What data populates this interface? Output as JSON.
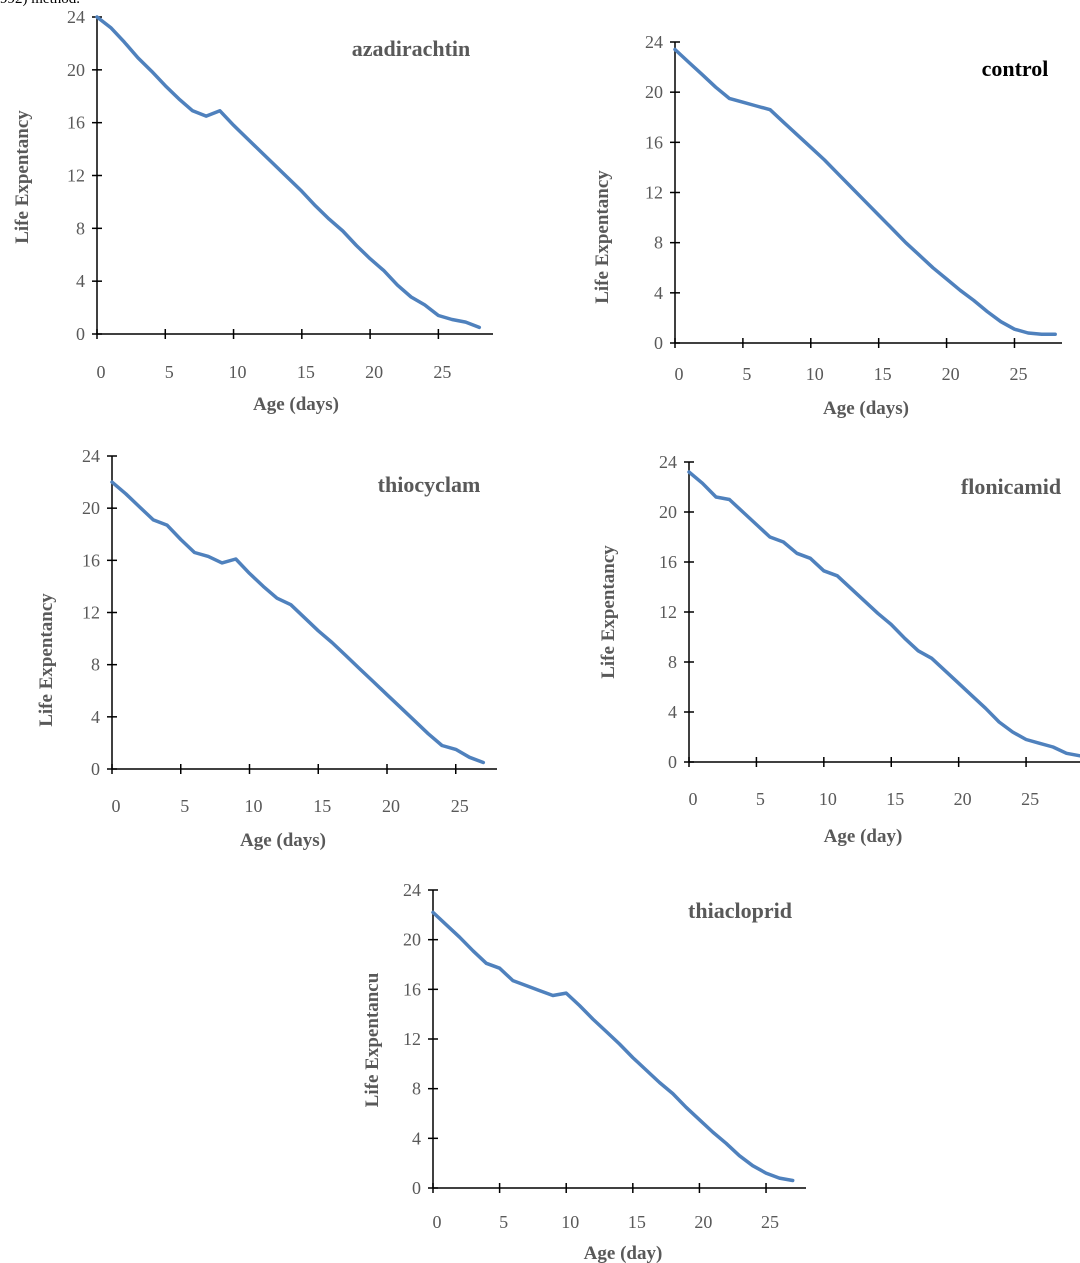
{
  "caption_fragment": "992) method.",
  "colors": {
    "line": "#4f81bd",
    "axis": "#000000",
    "text": "#595959",
    "title_control": "#000000"
  },
  "chart_data": [
    {
      "type": "line",
      "title": "azadirachtin",
      "xlabel": "Age (days)",
      "ylabel": "Life Expentancy",
      "xlim": [
        0,
        29
      ],
      "ylim": [
        0,
        24
      ],
      "xticks": [
        0,
        5,
        10,
        15,
        20,
        25
      ],
      "yticks": [
        0,
        4,
        8,
        12,
        16,
        20,
        24
      ],
      "grid": false,
      "x": [
        0,
        1,
        2,
        3,
        4,
        5,
        6,
        7,
        8,
        9,
        10,
        11,
        12,
        13,
        14,
        15,
        16,
        17,
        18,
        19,
        20,
        21,
        22,
        23,
        24,
        25,
        26,
        27,
        28
      ],
      "values": [
        24,
        23.2,
        22.1,
        20.9,
        19.9,
        18.8,
        17.8,
        16.9,
        16.5,
        16.9,
        15.8,
        14.8,
        13.8,
        12.8,
        11.8,
        10.8,
        9.7,
        8.7,
        7.8,
        6.7,
        5.7,
        4.8,
        3.7,
        2.8,
        2.2,
        1.4,
        1.1,
        0.9,
        0.5
      ]
    },
    {
      "type": "line",
      "title": "control",
      "xlabel": "Age (days)",
      "ylabel": "Life Expentancy",
      "xlim": [
        0,
        28.5
      ],
      "ylim": [
        0,
        24
      ],
      "xticks": [
        0,
        5,
        10,
        15,
        20,
        25
      ],
      "yticks": [
        0,
        4,
        8,
        12,
        16,
        20,
        24
      ],
      "grid": false,
      "x": [
        0,
        1,
        2,
        3,
        4,
        5,
        6,
        7,
        8,
        9,
        10,
        11,
        12,
        13,
        14,
        15,
        16,
        17,
        18,
        19,
        20,
        21,
        22,
        23,
        24,
        25,
        26,
        27,
        28
      ],
      "values": [
        23.4,
        22.4,
        21.4,
        20.4,
        19.5,
        19.2,
        18.9,
        18.6,
        17.6,
        16.6,
        15.6,
        14.6,
        13.5,
        12.4,
        11.3,
        10.2,
        9.1,
        8.0,
        7.0,
        6.0,
        5.1,
        4.2,
        3.4,
        2.5,
        1.7,
        1.1,
        0.8,
        0.7,
        0.7
      ]
    },
    {
      "type": "line",
      "title": "thiocyclam",
      "xlabel": "Age (days)",
      "ylabel": "Life Expentancy",
      "xlim": [
        0,
        28
      ],
      "ylim": [
        0,
        24
      ],
      "xticks": [
        0,
        5,
        10,
        15,
        20,
        25
      ],
      "yticks": [
        0,
        4,
        8,
        12,
        16,
        20,
        24
      ],
      "grid": false,
      "x": [
        0,
        1,
        2,
        3,
        4,
        5,
        6,
        7,
        8,
        9,
        10,
        11,
        12,
        13,
        14,
        15,
        16,
        17,
        18,
        19,
        20,
        21,
        22,
        23,
        24,
        25,
        26,
        27
      ],
      "values": [
        22,
        21.1,
        20.1,
        19.1,
        18.7,
        17.6,
        16.6,
        16.3,
        15.8,
        16.1,
        15.0,
        14.0,
        13.1,
        12.6,
        11.6,
        10.6,
        9.7,
        8.7,
        7.7,
        6.7,
        5.7,
        4.7,
        3.7,
        2.7,
        1.8,
        1.5,
        0.9,
        0.5
      ]
    },
    {
      "type": "line",
      "title": "flonicamid",
      "xlabel": "Age (day)",
      "ylabel": "Life Expentancy",
      "xlim": [
        0,
        29
      ],
      "ylim": [
        0,
        24
      ],
      "xticks": [
        0,
        5,
        10,
        15,
        20,
        25
      ],
      "yticks": [
        0,
        4,
        8,
        12,
        16,
        20,
        24
      ],
      "grid": false,
      "x": [
        0,
        1,
        2,
        3,
        4,
        5,
        6,
        7,
        8,
        9,
        10,
        11,
        12,
        13,
        14,
        15,
        16,
        17,
        18,
        19,
        20,
        21,
        22,
        23,
        24,
        25,
        26,
        27,
        28,
        29
      ],
      "values": [
        23.2,
        22.3,
        21.2,
        21.0,
        20.0,
        19.0,
        18.0,
        17.6,
        16.7,
        16.3,
        15.3,
        14.9,
        13.9,
        12.9,
        11.9,
        11.0,
        9.9,
        8.9,
        8.3,
        7.3,
        6.3,
        5.3,
        4.3,
        3.2,
        2.4,
        1.8,
        1.5,
        1.2,
        0.7,
        0.5
      ]
    },
    {
      "type": "line",
      "title": "thiacloprid",
      "xlabel": "Age (day)",
      "ylabel": "Life Expentancu",
      "xlim": [
        0,
        28
      ],
      "ylim": [
        0,
        24
      ],
      "xticks": [
        0,
        5,
        10,
        15,
        20,
        25
      ],
      "yticks": [
        0,
        4,
        8,
        12,
        16,
        20,
        24
      ],
      "grid": false,
      "x": [
        0,
        1,
        2,
        3,
        4,
        5,
        6,
        7,
        8,
        9,
        10,
        11,
        12,
        13,
        14,
        15,
        16,
        17,
        18,
        19,
        20,
        21,
        22,
        23,
        24,
        25,
        26,
        27
      ],
      "values": [
        22.2,
        21.2,
        20.2,
        19.1,
        18.1,
        17.7,
        16.7,
        16.3,
        15.9,
        15.5,
        15.7,
        14.7,
        13.6,
        12.6,
        11.6,
        10.5,
        9.5,
        8.5,
        7.6,
        6.5,
        5.5,
        4.5,
        3.6,
        2.6,
        1.8,
        1.2,
        0.8,
        0.6
      ]
    }
  ]
}
